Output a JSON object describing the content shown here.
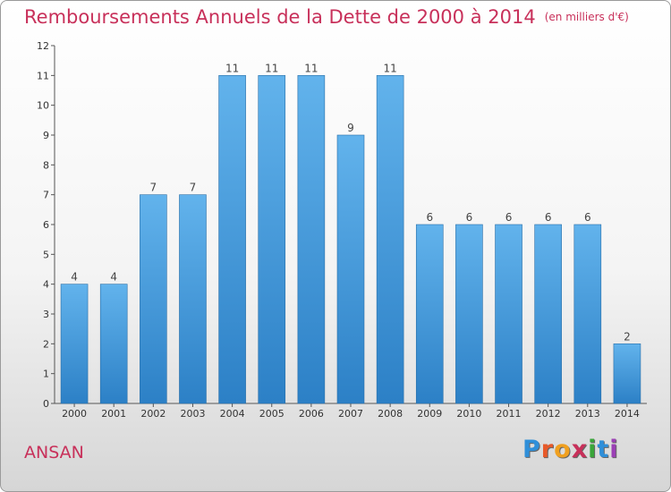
{
  "header": {
    "title": "Remboursements Annuels de la Dette de 2000 à 2014",
    "unit": "(en milliers d'€)"
  },
  "footer": {
    "town": "ANSAN",
    "logo": {
      "text": "Proxiti",
      "colors": [
        "#2f8fd9",
        "#e85a2a",
        "#f0a020",
        "#c8305a",
        "#3aa63a",
        "#2f8fd9",
        "#9b3fb5"
      ]
    }
  },
  "colors": {
    "bar": "#5aabe6",
    "bar_dark": "#2a7fc4",
    "title": "#c8305a"
  },
  "chart_data": {
    "type": "bar",
    "categories": [
      "2000",
      "2001",
      "2002",
      "2003",
      "2004",
      "2005",
      "2006",
      "2007",
      "2008",
      "2009",
      "2010",
      "2011",
      "2012",
      "2013",
      "2014"
    ],
    "values": [
      4,
      4,
      7,
      7,
      11,
      11,
      11,
      9,
      11,
      6,
      6,
      6,
      6,
      6,
      2
    ],
    "title": "Remboursements Annuels de la Dette de 2000 à 2014",
    "xlabel": "",
    "ylabel": "",
    "ylim": [
      0,
      12
    ],
    "yticks": [
      0,
      1,
      2,
      3,
      4,
      5,
      6,
      7,
      8,
      9,
      10,
      11,
      12
    ],
    "data_labels": true,
    "grid": false
  }
}
